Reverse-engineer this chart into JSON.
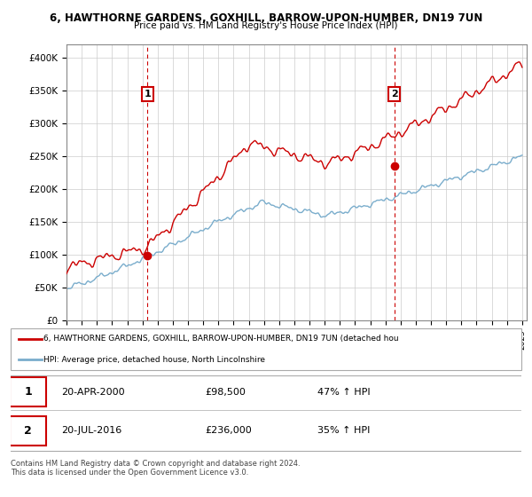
{
  "title_line1": "6, HAWTHORNE GARDENS, GOXHILL, BARROW-UPON-HUMBER, DN19 7UN",
  "title_line2": "Price paid vs. HM Land Registry's House Price Index (HPI)",
  "ylabel_ticks": [
    "£0",
    "£50K",
    "£100K",
    "£150K",
    "£200K",
    "£250K",
    "£300K",
    "£350K",
    "£400K"
  ],
  "ylabel_values": [
    0,
    50000,
    100000,
    150000,
    200000,
    250000,
    300000,
    350000,
    400000
  ],
  "ylim": [
    0,
    420000
  ],
  "sale1_year": 2000.33,
  "sale1_price": 98500,
  "sale2_year": 2016.58,
  "sale2_price": 236000,
  "red_line_color": "#cc0000",
  "blue_line_color": "#7aadcc",
  "dashed_line_color": "#cc0000",
  "grid_color": "#cccccc",
  "legend_label_red": "6, HAWTHORNE GARDENS, GOXHILL, BARROW-UPON-HUMBER, DN19 7UN (detached hou",
  "legend_label_blue": "HPI: Average price, detached house, North Lincolnshire",
  "table_row1": [
    "1",
    "20-APR-2000",
    "£98,500",
    "47% ↑ HPI"
  ],
  "table_row2": [
    "2",
    "20-JUL-2016",
    "£236,000",
    "35% ↑ HPI"
  ],
  "footer_text": "Contains HM Land Registry data © Crown copyright and database right 2024.\nThis data is licensed under the Open Government Licence v3.0."
}
